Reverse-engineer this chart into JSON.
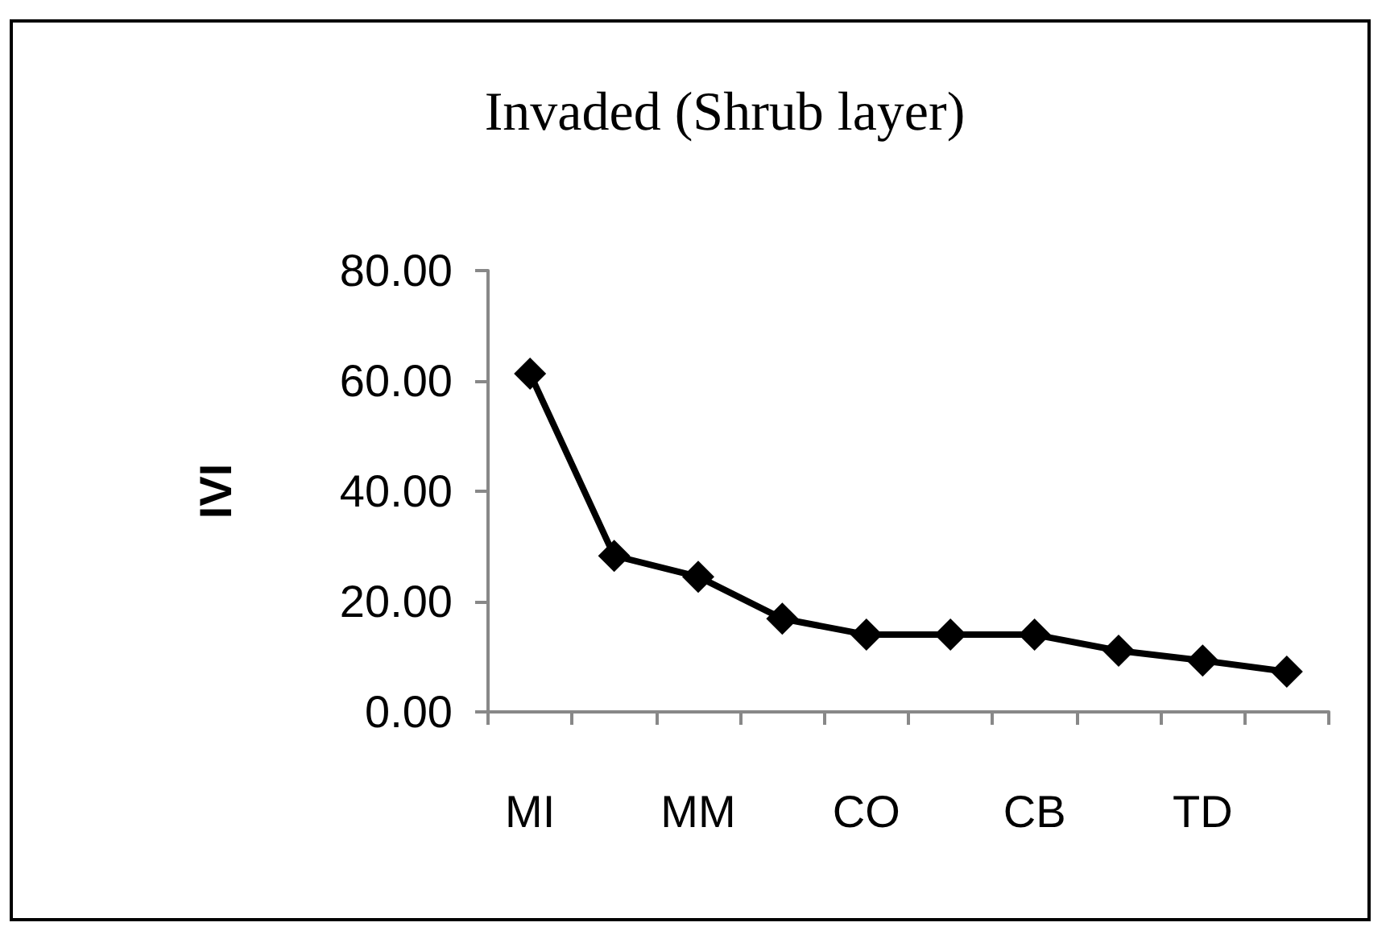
{
  "chart_data": {
    "type": "line",
    "title": "Invaded (Shrub layer)",
    "ylabel": "IVI",
    "categories": [
      "MI",
      null,
      "MM",
      null,
      "CO",
      null,
      "CB",
      null,
      "TD",
      null
    ],
    "series": [
      {
        "color": "#000000",
        "values": [
          61.3,
          28.3,
          24.5,
          16.9,
          14.0,
          14.0,
          14.0,
          11.1,
          9.3,
          7.3
        ]
      }
    ],
    "ylim": [
      0,
      80
    ],
    "yticks": [
      {
        "value": 0,
        "label": "0.00"
      },
      {
        "value": 20,
        "label": "20.00"
      },
      {
        "value": 40,
        "label": "40.00"
      },
      {
        "value": 60,
        "label": "60.00"
      },
      {
        "value": 80,
        "label": "80.00"
      }
    ],
    "grid": false,
    "marker": "diamond",
    "line_style": "solid"
  }
}
